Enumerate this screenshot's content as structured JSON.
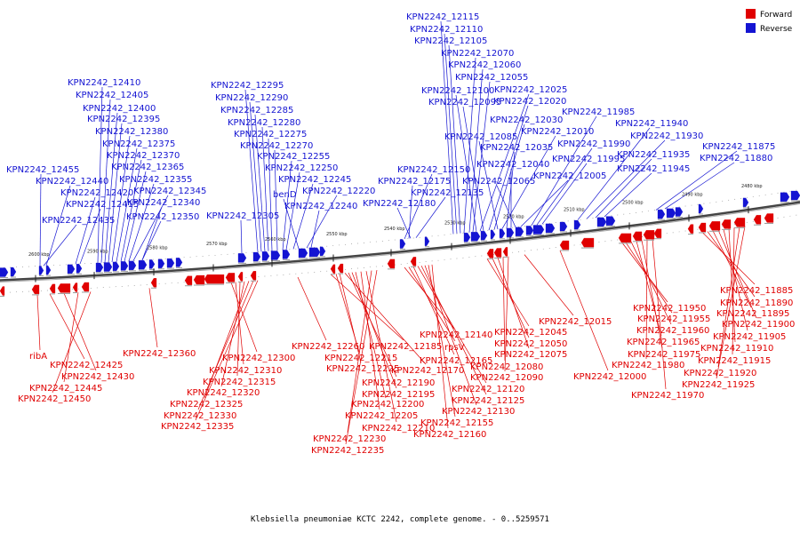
{
  "legend": {
    "forward": {
      "label": "Forward",
      "color": "#e00000"
    },
    "reverse": {
      "label": "Reverse",
      "color": "#1414d2"
    }
  },
  "caption": "Klebsiella pneumoniae KCTC 2242, complete genome. - 0..5259571",
  "ticks": [
    "2600 kbp",
    "2590 kbp",
    "2580 kbp",
    "2570 kbp",
    "2560 kbp",
    "2550 kbp",
    "2540 kbp",
    "2530 kbp",
    "2520 kbp",
    "2510 kbp",
    "2500 kbp",
    "2490 kbp",
    "2480 kbp"
  ],
  "reverse_labels": [
    "KPN2242_12455",
    "KPN2242_12440",
    "KPN2242_12420",
    "KPN2242_12415",
    "KPN2242_12435",
    "KPN2242_12410",
    "KPN2242_12405",
    "KPN2242_12400",
    "KPN2242_12395",
    "KPN2242_12380",
    "KPN2242_12375",
    "KPN2242_12370",
    "KPN2242_12365",
    "KPN2242_12355",
    "KPN2242_12345",
    "KPN2242_12340",
    "KPN2242_12350",
    "KPN2242_12295",
    "KPN2242_12290",
    "KPN2242_12285",
    "KPN2242_12280",
    "KPN2242_12275",
    "KPN2242_12270",
    "KPN2242_12255",
    "KPN2242_12250",
    "KPN2242_12245",
    "benD",
    "KPN2242_12220",
    "KPN2242_12240",
    "KPN2242_12305",
    "KPN2242_12150",
    "KPN2242_12175",
    "KPN2242_12180",
    "KPN2242_12135",
    "KPN2242_12115",
    "KPN2242_12110",
    "KPN2242_12105",
    "KPN2242_12070",
    "KPN2242_12060",
    "KPN2242_12055",
    "KPN2242_12100",
    "KPN2242_12025",
    "KPN2242_12095",
    "KPN2242_12020",
    "KPN2242_12030",
    "KPN2242_12085",
    "KPN2242_12010",
    "KPN2242_12035",
    "KPN2242_12040",
    "KPN2242_12065",
    "KPN2242_12005",
    "KPN2242_11985",
    "KPN2242_11990",
    "KPN2242_11995",
    "KPN2242_11940",
    "KPN2242_11930",
    "KPN2242_11935",
    "KPN2242_11945",
    "KPN2242_11875",
    "KPN2242_11880"
  ],
  "forward_labels": [
    "ribA",
    "KPN2242_12425",
    "KPN2242_12430",
    "KPN2242_12445",
    "KPN2242_12450",
    "KPN2242_12360",
    "KPN2242_12300",
    "KPN2242_12310",
    "KPN2242_12315",
    "KPN2242_12320",
    "KPN2242_12325",
    "KPN2242_12330",
    "KPN2242_12335",
    "KPN2242_12260",
    "KPN2242_12185",
    "KPN2242_12215",
    "KPN2242_12225",
    "KPN2242_12170",
    "KPN2242_12190",
    "KPN2242_12195",
    "KPN2242_12200",
    "KPN2242_12205",
    "KPN2242_12210",
    "KPN2242_12230",
    "KPN2242_12235",
    "KPN2242_12140",
    "rpsV",
    "KPN2242_12165",
    "KPN2242_12120",
    "KPN2242_12125",
    "KPN2242_12130",
    "KPN2242_12155",
    "KPN2242_12160",
    "KPN2242_12045",
    "KPN2242_12050",
    "KPN2242_12075",
    "KPN2242_12080",
    "KPN2242_12090",
    "KPN2242_12015",
    "KPN2242_12000",
    "KPN2242_11950",
    "KPN2242_11955",
    "KPN2242_11960",
    "KPN2242_11965",
    "KPN2242_11975",
    "KPN2242_11980",
    "KPN2242_11970",
    "KPN2242_11885",
    "KPN2242_11890",
    "KPN2242_11895",
    "KPN2242_11900",
    "KPN2242_11905",
    "KPN2242_11910",
    "KPN2242_11915",
    "KPN2242_11920",
    "KPN2242_11925"
  ]
}
